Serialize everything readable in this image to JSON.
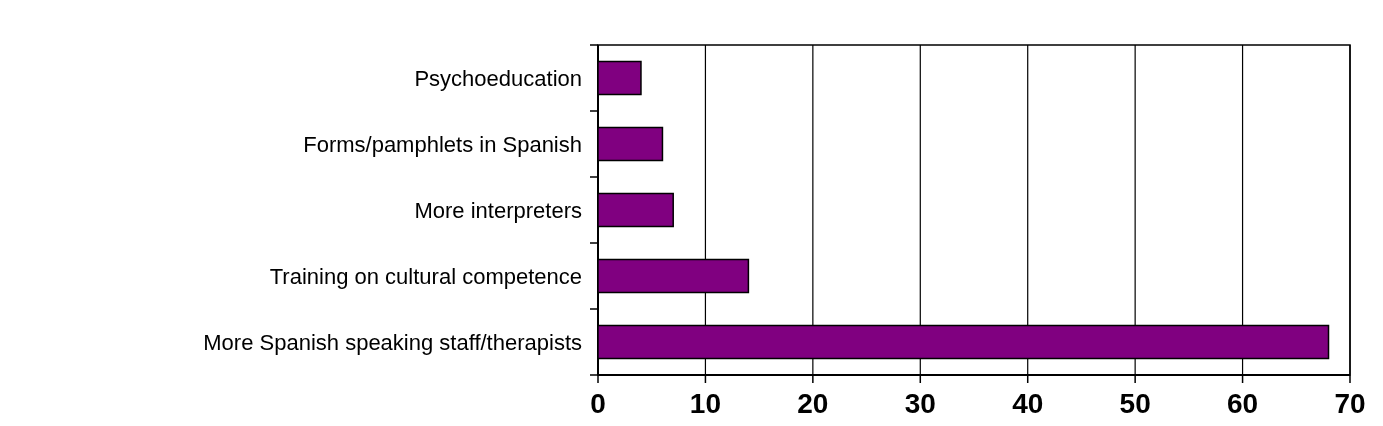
{
  "chart_data": {
    "type": "bar",
    "orientation": "horizontal",
    "categories": [
      "Psychoeducation",
      "Forms/pamphlets in Spanish",
      "More interpreters",
      "Training on cultural competence",
      "More Spanish speaking staff/therapists"
    ],
    "values": [
      4,
      6,
      7,
      14,
      68
    ],
    "color": "#800080",
    "xlim": [
      0,
      70
    ],
    "xticks": [
      0,
      10,
      20,
      30,
      40,
      50,
      60,
      70
    ],
    "grid": "x"
  }
}
